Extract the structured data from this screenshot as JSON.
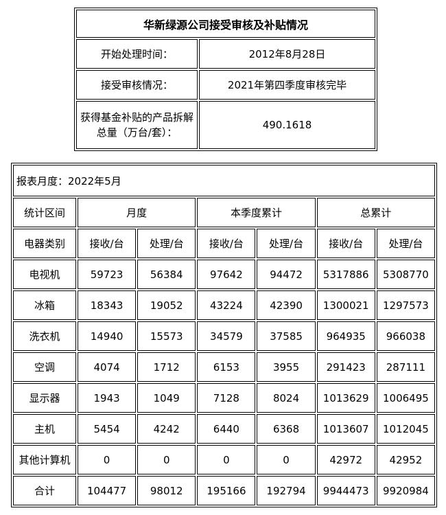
{
  "summary": {
    "title": "华新绿源公司接受审核及补贴情况",
    "rows": [
      {
        "label": "开始处理时间：",
        "value": "2012年8月28日"
      },
      {
        "label": "接受审核情况：",
        "value": "2021年第四季度审核完毕"
      },
      {
        "label": "获得基金补贴的产品拆解总量（万台/套）：",
        "value": "490.1618"
      }
    ]
  },
  "report": {
    "month_label": "报表月度：2022年5月",
    "period_header": "统计区间",
    "periods": [
      "月度",
      "本季度累计",
      "总累计"
    ],
    "category_header": "电器类别",
    "sub_headers": [
      "接收/台",
      "处理/台",
      "接收/台",
      "处理/台",
      "接收/台",
      "处理/台"
    ],
    "rows": [
      {
        "category": "电视机",
        "values": [
          "59723",
          "56384",
          "97642",
          "94472",
          "5317886",
          "5308770"
        ]
      },
      {
        "category": "冰箱",
        "values": [
          "18343",
          "19052",
          "43224",
          "42390",
          "1300021",
          "1297573"
        ]
      },
      {
        "category": "洗衣机",
        "values": [
          "14940",
          "15573",
          "34579",
          "37585",
          "964935",
          "966038"
        ]
      },
      {
        "category": "空调",
        "values": [
          "4074",
          "1712",
          "6153",
          "3955",
          "291423",
          "287111"
        ]
      },
      {
        "category": "显示器",
        "values": [
          "1943",
          "1049",
          "7128",
          "8024",
          "1013629",
          "1006495"
        ]
      },
      {
        "category": "主机",
        "values": [
          "5454",
          "4242",
          "6440",
          "6368",
          "1013607",
          "1012045"
        ]
      },
      {
        "category": "其他计算机",
        "values": [
          "0",
          "0",
          "0",
          "0",
          "42972",
          "42952"
        ]
      },
      {
        "category": "合计",
        "values": [
          "104477",
          "98012",
          "195166",
          "192794",
          "9944473",
          "9920984"
        ]
      }
    ]
  }
}
